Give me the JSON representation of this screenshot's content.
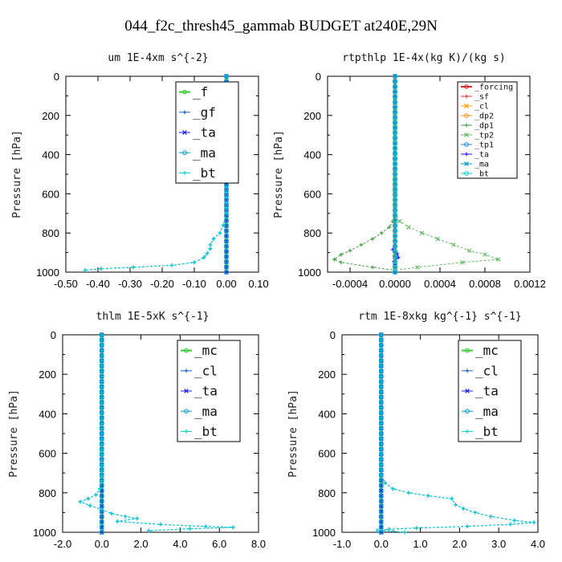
{
  "figure": {
    "title": "044_f2c_thresh45_gammab  BUDGET at240E,29N"
  },
  "chart_data": [
    {
      "type": "line",
      "title": "um   1E-4xm s^{-2}",
      "ylabel": "Pressure [hPa]",
      "xlim": [
        -0.5,
        0.1
      ],
      "ylim": [
        1000,
        0
      ],
      "xticks": [
        "-0.50",
        "-0.40",
        "-0.30",
        "-0.20",
        "-0.10",
        "0.00",
        "0.10"
      ],
      "yticks": [
        "0",
        "200",
        "400",
        "600",
        "800",
        "1000"
      ],
      "legend_size": "large",
      "series": [
        {
          "name": "_f",
          "color": "#33cc33",
          "values": [
            [
              0.0,
              0
            ],
            [
              0.0,
              1000
            ]
          ]
        },
        {
          "name": "_gf",
          "color": "#1565c0",
          "values": [
            [
              0.0,
              0
            ],
            [
              0.0,
              700
            ],
            [
              -0.01,
              760
            ],
            [
              -0.02,
              800
            ],
            [
              -0.04,
              830
            ],
            [
              -0.05,
              860
            ],
            [
              -0.05,
              880
            ],
            [
              -0.06,
              905
            ],
            [
              -0.07,
              925
            ],
            [
              -0.1,
              950
            ],
            [
              -0.17,
              965
            ],
            [
              -0.29,
              975
            ],
            [
              -0.39,
              982
            ],
            [
              -0.44,
              990
            ]
          ]
        },
        {
          "name": "_ta",
          "color": "#1a1aff",
          "values": [
            [
              0.0,
              0
            ],
            [
              0.0,
              1000
            ]
          ]
        },
        {
          "name": "_ma",
          "color": "#0099cc",
          "values": [
            [
              0.0,
              0
            ],
            [
              0.0,
              1000
            ]
          ]
        },
        {
          "name": "_bt",
          "color": "#00ced1",
          "values": [
            [
              0.0,
              0
            ],
            [
              0.0,
              700
            ],
            [
              -0.01,
              760
            ],
            [
              -0.02,
              800
            ],
            [
              -0.04,
              830
            ],
            [
              -0.05,
              860
            ],
            [
              -0.05,
              880
            ],
            [
              -0.06,
              905
            ],
            [
              -0.07,
              925
            ],
            [
              -0.1,
              950
            ],
            [
              -0.17,
              965
            ],
            [
              -0.29,
              975
            ],
            [
              -0.39,
              982
            ],
            [
              -0.44,
              990
            ]
          ]
        }
      ]
    },
    {
      "type": "line",
      "title": "rtpthlp   1E-4x(kg K)/(kg s)",
      "ylabel": "Pressure [hPa]",
      "xlim": [
        -0.0006,
        0.0012
      ],
      "ylim": [
        1000,
        0
      ],
      "xticks": [
        "-0.0004",
        "0.0000",
        "0.0004",
        "0.0008",
        "0.0012"
      ],
      "yticks": [
        "0",
        "200",
        "400",
        "600",
        "800",
        "1000"
      ],
      "legend_size": "small",
      "series": [
        {
          "name": "_forcing",
          "color": "#d32f2f",
          "values": [
            [
              0.0,
              0
            ],
            [
              0.0,
              1000
            ]
          ]
        },
        {
          "name": "_sf",
          "color": "#e53935",
          "values": [
            [
              0.0,
              0
            ],
            [
              0.0,
              1000
            ]
          ]
        },
        {
          "name": "_cl",
          "color": "#ffa000",
          "values": [
            [
              0.0,
              0
            ],
            [
              0.0,
              1000
            ]
          ]
        },
        {
          "name": "_dp2",
          "color": "#fb8c00",
          "values": [
            [
              0.0,
              0
            ],
            [
              0.0,
              1000
            ]
          ]
        },
        {
          "name": "_dp1",
          "color": "#43a047",
          "values": [
            [
              0.0,
              0
            ],
            [
              0.0,
              700
            ],
            [
              -2e-05,
              740
            ],
            [
              -5e-05,
              770
            ],
            [
              -0.00012,
              800
            ],
            [
              -0.0002,
              830
            ],
            [
              -0.0003,
              860
            ],
            [
              -0.0004,
              890
            ],
            [
              -0.00048,
              910
            ],
            [
              -0.00054,
              935
            ],
            [
              -0.00048,
              950
            ],
            [
              -0.0002,
              975
            ],
            [
              0.0,
              990
            ]
          ]
        },
        {
          "name": "_tp2",
          "color": "#66bb6a",
          "values": [
            [
              0.0,
              0
            ],
            [
              0.0,
              700
            ],
            [
              4e-05,
              740
            ],
            [
              0.00012,
              770
            ],
            [
              0.00024,
              800
            ],
            [
              0.00038,
              830
            ],
            [
              0.00052,
              860
            ],
            [
              0.00066,
              890
            ],
            [
              0.0008,
              910
            ],
            [
              0.00092,
              935
            ],
            [
              0.0006,
              950
            ],
            [
              0.0002,
              975
            ],
            [
              0.0,
              990
            ]
          ]
        },
        {
          "name": "_tp1",
          "color": "#1e88e5",
          "values": [
            [
              0.0,
              0
            ],
            [
              0.0,
              1000
            ]
          ]
        },
        {
          "name": "_ta",
          "color": "#1a1aff",
          "values": [
            [
              0.0,
              0
            ],
            [
              0.0,
              860
            ],
            [
              -2e-05,
              885
            ],
            [
              2e-05,
              905
            ],
            [
              3e-05,
              925
            ],
            [
              -1e-05,
              945
            ],
            [
              0.0,
              960
            ],
            [
              0.0,
              1000
            ]
          ]
        },
        {
          "name": "_ma",
          "color": "#0099cc",
          "values": [
            [
              0.0,
              0
            ],
            [
              0.0,
              1000
            ]
          ]
        },
        {
          "name": "_bt",
          "color": "#00ced1",
          "values": [
            [
              0.0,
              0
            ],
            [
              0.0,
              1000
            ]
          ]
        }
      ]
    },
    {
      "type": "line",
      "title": "thlm   1E-5xK s^{-1}",
      "ylabel": "Pressure [hPa]",
      "xlim": [
        -2.0,
        8.0
      ],
      "ylim": [
        1000,
        0
      ],
      "xticks": [
        "-2.0",
        "0.0",
        "2.0",
        "4.0",
        "6.0",
        "8.0"
      ],
      "yticks": [
        "0",
        "200",
        "400",
        "600",
        "800",
        "1000"
      ],
      "legend_size": "large",
      "series": [
        {
          "name": "_mc",
          "color": "#33cc33",
          "values": [
            [
              0.0,
              0
            ],
            [
              0.0,
              1000
            ]
          ]
        },
        {
          "name": "_cl",
          "color": "#1565c0",
          "values": [
            [
              0.0,
              0
            ],
            [
              0.0,
              740
            ],
            [
              -0.1,
              780
            ],
            [
              -0.3,
              810
            ],
            [
              -0.7,
              830
            ],
            [
              -1.1,
              845
            ],
            [
              -0.6,
              865
            ],
            [
              0.0,
              885
            ],
            [
              0.5,
              905
            ],
            [
              1.2,
              920
            ],
            [
              1.8,
              930
            ],
            [
              0.8,
              945
            ],
            [
              3.0,
              960
            ],
            [
              5.3,
              970
            ],
            [
              6.7,
              975
            ],
            [
              4.5,
              982
            ],
            [
              2.4,
              992
            ]
          ]
        },
        {
          "name": "_ta",
          "color": "#1a1aff",
          "values": [
            [
              0.0,
              0
            ],
            [
              0.0,
              1000
            ]
          ]
        },
        {
          "name": "_ma",
          "color": "#0099cc",
          "values": [
            [
              0.0,
              0
            ],
            [
              0.0,
              1000
            ]
          ]
        },
        {
          "name": "_bt",
          "color": "#00ced1",
          "values": [
            [
              0.0,
              0
            ],
            [
              0.0,
              740
            ],
            [
              -0.1,
              780
            ],
            [
              -0.3,
              810
            ],
            [
              -0.7,
              830
            ],
            [
              -1.1,
              845
            ],
            [
              -0.6,
              865
            ],
            [
              0.0,
              885
            ],
            [
              0.5,
              905
            ],
            [
              1.2,
              920
            ],
            [
              1.8,
              930
            ],
            [
              0.8,
              945
            ],
            [
              3.0,
              960
            ],
            [
              5.3,
              970
            ],
            [
              6.7,
              975
            ],
            [
              4.5,
              982
            ],
            [
              2.4,
              992
            ]
          ]
        }
      ]
    },
    {
      "type": "line",
      "title": "rtm   1E-8xkg kg^{-1} s^{-1}",
      "ylabel": "Pressure [hPa]",
      "xlim": [
        -1.0,
        4.0
      ],
      "ylim": [
        1000,
        0
      ],
      "xticks": [
        "-1.0",
        "0.0",
        "1.0",
        "2.0",
        "3.0",
        "4.0"
      ],
      "yticks": [
        "0",
        "200",
        "400",
        "600",
        "800",
        "1000"
      ],
      "legend_size": "large",
      "series": [
        {
          "name": "_mc",
          "color": "#33cc33",
          "values": [
            [
              0.0,
              0
            ],
            [
              0.0,
              1000
            ]
          ]
        },
        {
          "name": "_cl",
          "color": "#1565c0",
          "values": [
            [
              0.0,
              0
            ],
            [
              0.0,
              710
            ],
            [
              0.1,
              750
            ],
            [
              0.3,
              780
            ],
            [
              0.7,
              800
            ],
            [
              1.2,
              815
            ],
            [
              1.8,
              830
            ],
            [
              1.9,
              860
            ],
            [
              2.1,
              880
            ],
            [
              2.4,
              900
            ],
            [
              2.8,
              920
            ],
            [
              3.4,
              940
            ],
            [
              3.9,
              950
            ],
            [
              3.3,
              960
            ],
            [
              2.2,
              970
            ],
            [
              0.9,
              978
            ],
            [
              0.2,
              985
            ],
            [
              -0.1,
              990
            ],
            [
              0.3,
              995
            ],
            [
              0.6,
              1000
            ]
          ]
        },
        {
          "name": "_ta",
          "color": "#1a1aff",
          "values": [
            [
              0.0,
              0
            ],
            [
              0.0,
              1000
            ]
          ]
        },
        {
          "name": "_ma",
          "color": "#0099cc",
          "values": [
            [
              0.0,
              0
            ],
            [
              0.0,
              1000
            ]
          ]
        },
        {
          "name": "_bt",
          "color": "#00ced1",
          "values": [
            [
              0.0,
              0
            ],
            [
              0.0,
              710
            ],
            [
              0.1,
              750
            ],
            [
              0.3,
              780
            ],
            [
              0.7,
              800
            ],
            [
              1.2,
              815
            ],
            [
              1.8,
              830
            ],
            [
              1.9,
              860
            ],
            [
              2.1,
              880
            ],
            [
              2.4,
              900
            ],
            [
              2.8,
              920
            ],
            [
              3.4,
              940
            ],
            [
              3.9,
              950
            ],
            [
              3.3,
              960
            ],
            [
              2.2,
              970
            ],
            [
              0.9,
              978
            ],
            [
              0.2,
              985
            ],
            [
              -0.1,
              990
            ],
            [
              0.3,
              995
            ],
            [
              0.6,
              1000
            ]
          ]
        }
      ]
    }
  ]
}
